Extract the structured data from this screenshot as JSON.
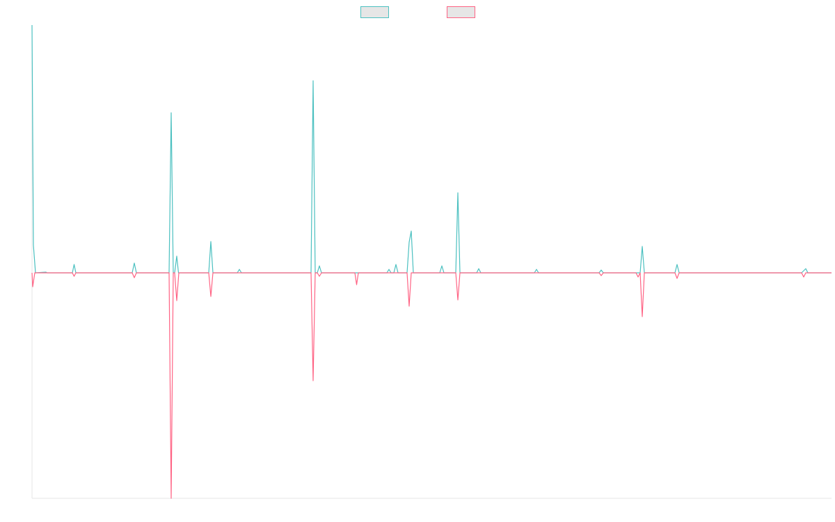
{
  "chart_data": {
    "type": "line",
    "legend": "top",
    "xlim": [
      0,
      1149
    ],
    "ylim": [
      -32.4,
      35.6
    ],
    "series": [
      {
        "color": "#4bc0c0",
        "x": [
          0,
          2,
          5,
          20,
          22,
          58,
          60.5,
          63,
          144,
          147,
          150,
          197,
          200,
          203,
          205,
          208,
          210.5,
          254,
          257,
          260,
          295,
          298,
          301,
          401,
          404,
          407,
          410,
          413,
          416,
          510,
          513,
          516,
          520,
          523,
          526,
          539,
          542,
          545,
          548,
          586,
          589,
          592,
          609,
          612,
          615,
          639,
          642,
          645,
          722,
          725,
          728,
          815,
          818,
          821,
          874,
          877,
          880,
          924,
          927,
          930,
          1106,
          1109,
          1112,
          1115,
          1149
        ],
        "values": [
          35.6,
          4.0,
          0,
          0.1,
          0,
          0,
          1.2,
          0,
          0,
          1.4,
          0,
          0,
          23.0,
          0,
          0,
          2.4,
          0,
          0,
          4.5,
          0,
          0,
          0.5,
          0,
          0,
          27.6,
          0,
          0,
          1.0,
          0,
          0,
          0.5,
          0,
          0,
          1.2,
          0,
          0,
          4.4,
          6.0,
          0,
          0,
          1.0,
          0,
          0,
          11.5,
          0,
          0,
          0.6,
          0,
          0,
          0.5,
          0,
          0,
          0.4,
          0,
          0,
          3.8,
          0,
          0,
          1.2,
          0,
          0,
          0.3,
          0.6,
          0,
          0
        ]
      },
      {
        "color": "#ff6384",
        "x": [
          0,
          1,
          4,
          58,
          60.5,
          63,
          144,
          147,
          150,
          197,
          200,
          203,
          205,
          208,
          211,
          254,
          257,
          260,
          401,
          404,
          407,
          410,
          413,
          416,
          464,
          466.5,
          469,
          539,
          542,
          545,
          609,
          612,
          615,
          815,
          818,
          821,
          868,
          871,
          874,
          877,
          880,
          924,
          927,
          930,
          1106,
          1109,
          1112,
          1149
        ],
        "values": [
          0,
          -2.0,
          0,
          0,
          -0.5,
          0,
          0,
          -0.7,
          0,
          0,
          -32.4,
          0,
          0,
          -4.0,
          0,
          0,
          -3.4,
          0,
          0,
          -15.5,
          0,
          0,
          -0.5,
          0,
          0,
          -1.7,
          0,
          0,
          -4.8,
          0,
          0,
          -3.9,
          0,
          0,
          -0.4,
          0,
          0,
          -0.6,
          0,
          -6.3,
          0,
          0,
          -0.8,
          0,
          0,
          -0.6,
          0,
          0
        ]
      }
    ]
  }
}
